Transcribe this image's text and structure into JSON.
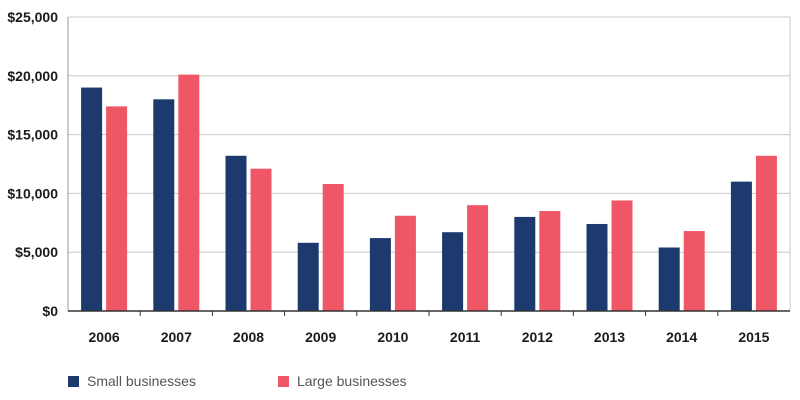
{
  "chart_data": {
    "type": "bar",
    "categories": [
      "2006",
      "2007",
      "2008",
      "2009",
      "2010",
      "2011",
      "2012",
      "2013",
      "2014",
      "2015"
    ],
    "series": [
      {
        "name": "Small businesses",
        "color": "#1c3a6e",
        "values": [
          19000,
          18000,
          13200,
          5800,
          6200,
          6700,
          8000,
          7400,
          5400,
          11000
        ]
      },
      {
        "name": "Large businesses",
        "color": "#ef5766",
        "values": [
          17400,
          20100,
          12100,
          10800,
          8100,
          9000,
          8500,
          9400,
          6800,
          13200
        ]
      }
    ],
    "y_ticks": [
      "$0",
      "$5,000",
      "$10,000",
      "$15,000",
      "$20,000",
      "$25,000"
    ],
    "ylim": [
      0,
      25000
    ],
    "grid": true,
    "legend_position": "bottom-left",
    "title": "",
    "xlabel": "",
    "ylabel": ""
  }
}
